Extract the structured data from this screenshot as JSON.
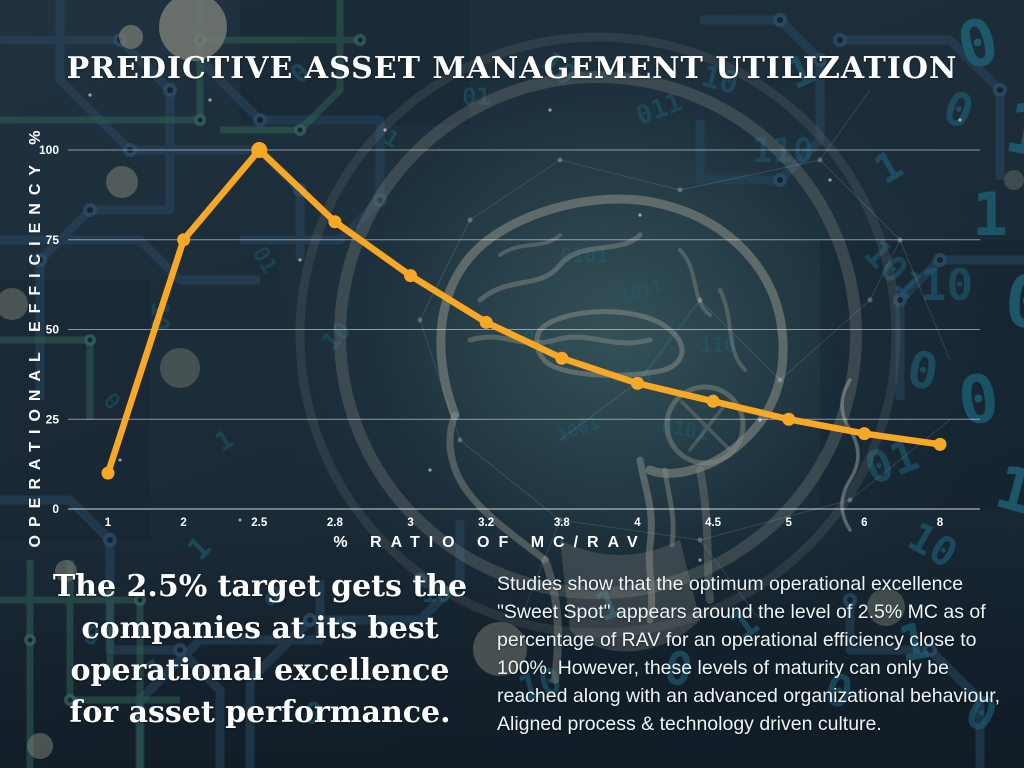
{
  "title": "PREDICTIVE ASSET MANAGEMENT UTILIZATION",
  "chart_data": {
    "type": "line",
    "categories": [
      "1",
      "2",
      "2.5",
      "2.8",
      "3",
      "3.2",
      "3.8",
      "4",
      "4.5",
      "5",
      "6",
      "8"
    ],
    "series": [
      {
        "name": "Operational Efficiency",
        "values": [
          10,
          75,
          100,
          80,
          65,
          52,
          42,
          35,
          30,
          25,
          21,
          18
        ]
      }
    ],
    "xlabel": "% RATIO OF MC/RAV",
    "ylabel": "OPERATIONAL EFFICIENCY %",
    "y_ticks": [
      0,
      25,
      50,
      75,
      100
    ],
    "ylim": [
      0,
      100
    ],
    "grid": true,
    "legend_position": "none",
    "line_color": "#F9A825",
    "marker": "circle",
    "peak": {
      "category": "2.5",
      "value": 100
    }
  },
  "callout": {
    "lines": [
      "The 2.5% target gets the",
      "companies at its best",
      "operational excellence",
      "for asset performance."
    ]
  },
  "paragraph": "Studies show that the optimum operational excellence \"Sweet Spot\" appears around the level of 2.5% MC as of percentage of RAV for an operational efficiency close to 100%. However, these levels of maturity can only be reached along with an advanced organizational behaviour,  Aligned process & technology driven culture.",
  "colors": {
    "accent": "#F9A825",
    "background": "#1B2A38",
    "text": "#FFFFFF",
    "circuit_blue": "#27455C",
    "circuit_green": "#2E5F55",
    "binary_teal": "#1E6379",
    "brain_gray": "#8E9087",
    "gridline": "rgba(255,255,255,0.55)"
  }
}
